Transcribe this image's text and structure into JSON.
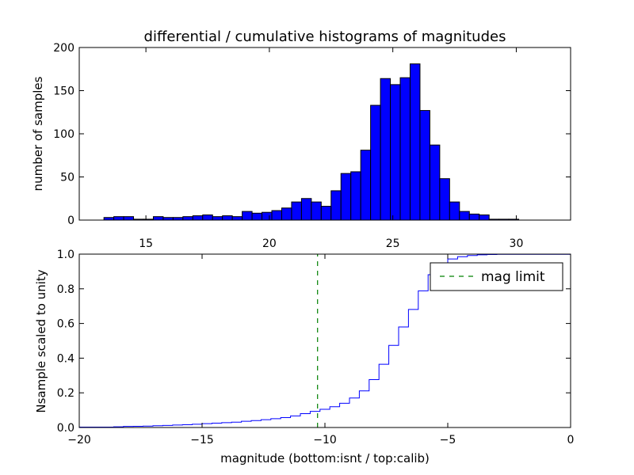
{
  "chart_data": [
    {
      "type": "bar",
      "title": "differential / cumulative histograms of magnitudes",
      "xlabel": "",
      "ylabel": "number of samples",
      "xlim": [
        12.3,
        32.2
      ],
      "ylim": [
        0,
        200
      ],
      "xticks": [
        "15",
        "20",
        "25",
        "30"
      ],
      "yticks": [
        "0",
        "50",
        "100",
        "150",
        "200"
      ],
      "bar_color": "#0000ff",
      "bin_start": 13.3,
      "bin_width": 0.4,
      "values": [
        3,
        4,
        4,
        1,
        1,
        4,
        3,
        3,
        4,
        5,
        6,
        4,
        5,
        4,
        10,
        8,
        9,
        11,
        14,
        21,
        25,
        21,
        16,
        34,
        54,
        56,
        81,
        133,
        164,
        157,
        165,
        181,
        127,
        87,
        48,
        21,
        10,
        7,
        6,
        1,
        1,
        1
      ]
    },
    {
      "type": "line",
      "step": true,
      "xlabel": "magnitude (bottom:isnt / top:calib)",
      "ylabel": "Nsample scaled to unity",
      "xlim": [
        -20,
        0
      ],
      "ylim": [
        0,
        1
      ],
      "xticks": [
        "−20",
        "−15",
        "−10",
        "−5",
        "0"
      ],
      "yticks": [
        "0.0",
        "0.2",
        "0.4",
        "0.6",
        "0.8",
        "1.0"
      ],
      "grid": false,
      "legend_placement": "top-right",
      "series": [
        {
          "color": "#0000ff",
          "x": [
            -19.0,
            -18.6,
            -18.2,
            -17.8,
            -17.4,
            -17.0,
            -16.6,
            -16.2,
            -15.8,
            -15.4,
            -15.0,
            -14.6,
            -14.2,
            -13.8,
            -13.4,
            -13.0,
            -12.6,
            -12.2,
            -11.8,
            -11.4,
            -11.0,
            -10.6,
            -10.2,
            -9.8,
            -9.4,
            -9.0,
            -8.6,
            -8.2,
            -7.8,
            -7.4,
            -7.0,
            -6.6,
            -6.2,
            -5.8,
            -5.4,
            -5.0,
            -4.6,
            -4.2,
            -3.8,
            -3.4,
            -3.0,
            -0.0
          ],
          "y": [
            0.002,
            0.004,
            0.006,
            0.007,
            0.008,
            0.01,
            0.012,
            0.014,
            0.016,
            0.019,
            0.022,
            0.025,
            0.028,
            0.031,
            0.036,
            0.04,
            0.045,
            0.051,
            0.057,
            0.067,
            0.08,
            0.093,
            0.105,
            0.12,
            0.14,
            0.17,
            0.211,
            0.276,
            0.365,
            0.474,
            0.58,
            0.681,
            0.788,
            0.881,
            0.943,
            0.972,
            0.985,
            0.992,
            0.996,
            0.998,
            0.999,
            1.0
          ]
        },
        {
          "name": "mag limit",
          "color": "#008000",
          "dashed": true,
          "x": [
            -10.3,
            -10.3
          ],
          "y": [
            0,
            1
          ]
        }
      ]
    }
  ]
}
